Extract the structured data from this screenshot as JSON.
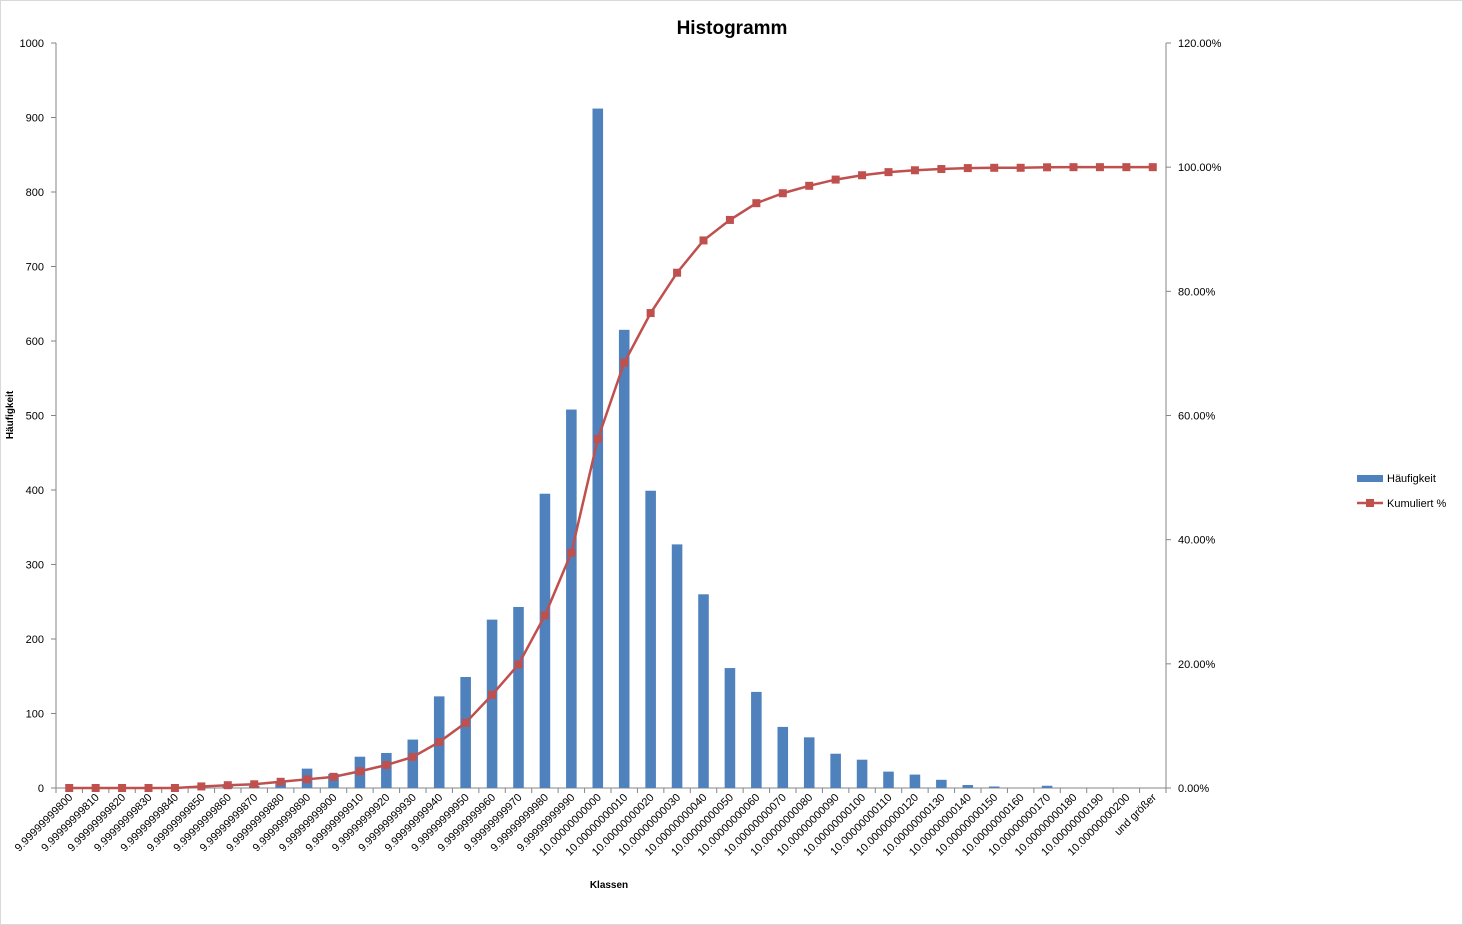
{
  "chart_data": {
    "type": "bar",
    "title": "Histogramm",
    "xlabel": "Klassen",
    "ylabel": "Häufigkeit",
    "ylim": [
      0,
      1000
    ],
    "y2lim": [
      0,
      1.2
    ],
    "yticks": [
      "0",
      "100",
      "200",
      "300",
      "400",
      "500",
      "600",
      "700",
      "800",
      "900",
      "1000"
    ],
    "y2ticks": [
      "0.00%",
      "20.00%",
      "40.00%",
      "60.00%",
      "80.00%",
      "100.00%",
      "120.00%"
    ],
    "legend_position": "right",
    "grid": false,
    "colors": {
      "bar": "#4f81bd",
      "line": "#c0504d"
    },
    "categories": [
      "9.99999999800",
      "9.99999999810",
      "9.99999999820",
      "9.99999999830",
      "9.99999999840",
      "9.99999999850",
      "9.99999999860",
      "9.99999999870",
      "9.99999999880",
      "9.99999999890",
      "9.99999999900",
      "9.99999999910",
      "9.99999999920",
      "9.99999999930",
      "9.99999999940",
      "9.99999999950",
      "9.99999999960",
      "9.99999999970",
      "9.99999999980",
      "9.99999999990",
      "10.00000000000",
      "10.00000000010",
      "10.00000000020",
      "10.00000000030",
      "10.00000000040",
      "10.00000000050",
      "10.00000000060",
      "10.00000000070",
      "10.00000000080",
      "10.00000000090",
      "10.00000000100",
      "10.00000000110",
      "10.00000000120",
      "10.00000000130",
      "10.00000000140",
      "10.00000000150",
      "10.00000000160",
      "10.00000000170",
      "10.00000000180",
      "10.00000000190",
      "10.00000000200",
      "und größer"
    ],
    "series": [
      {
        "name": "Häufigkeit",
        "type": "bar",
        "axis": "left",
        "values": [
          0,
          0,
          0,
          0,
          0,
          3,
          5,
          3,
          8,
          26,
          19,
          42,
          47,
          65,
          123,
          149,
          226,
          243,
          395,
          508,
          912,
          615,
          399,
          327,
          260,
          161,
          129,
          82,
          68,
          46,
          38,
          22,
          18,
          11,
          4,
          2,
          0,
          3,
          0,
          0,
          0,
          0
        ]
      },
      {
        "name": "Kumuliert %",
        "type": "line",
        "axis": "right",
        "values": [
          0.0,
          0.0,
          0.0,
          0.0,
          0.0,
          0.0025,
          0.0045,
          0.006,
          0.01,
          0.014,
          0.018,
          0.027,
          0.037,
          0.05,
          0.074,
          0.105,
          0.15,
          0.199,
          0.278,
          0.379,
          0.562,
          0.685,
          0.765,
          0.83,
          0.882,
          0.915,
          0.942,
          0.958,
          0.97,
          0.98,
          0.987,
          0.992,
          0.995,
          0.997,
          0.9985,
          0.999,
          0.999,
          0.9998,
          1.0,
          1.0,
          1.0,
          1.0
        ]
      }
    ]
  }
}
